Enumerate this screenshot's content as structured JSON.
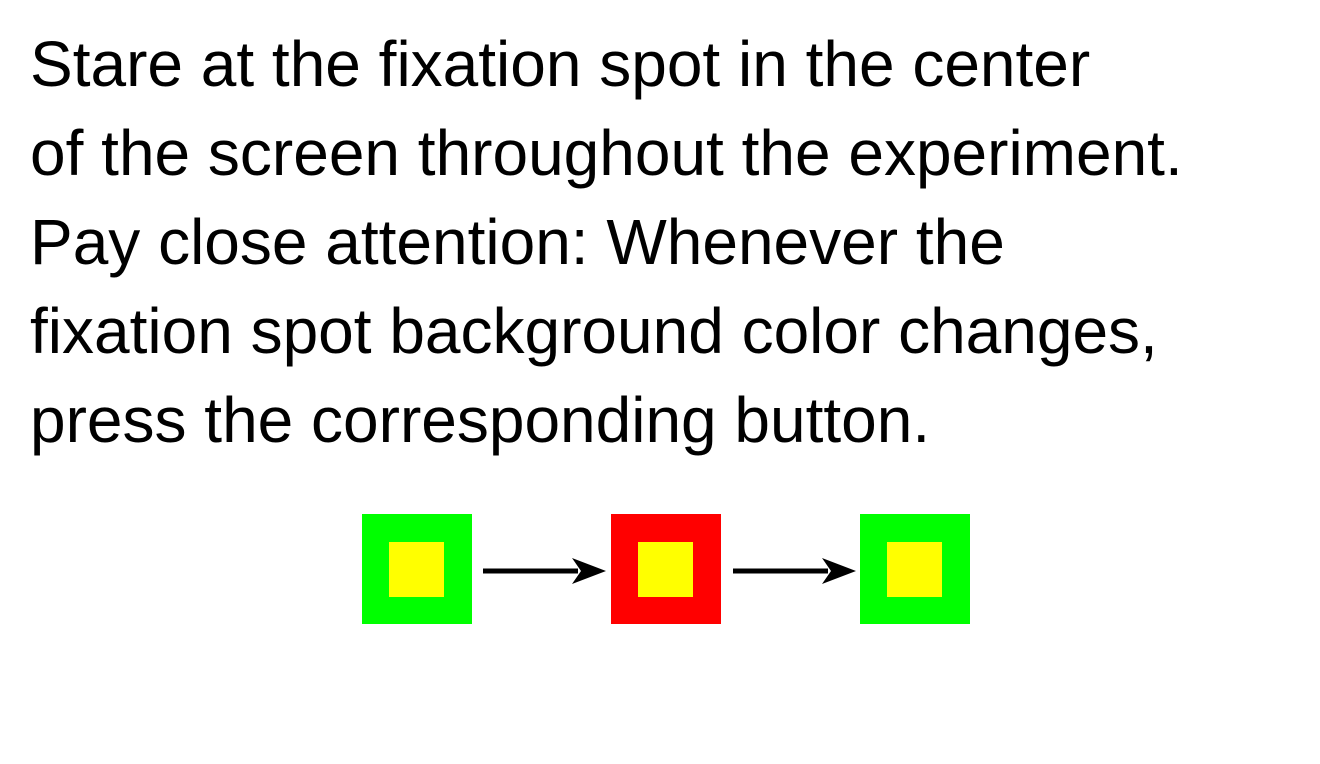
{
  "instructions": {
    "lines": [
      "Stare at the fixation spot in the center",
      "of the screen throughout the experiment.",
      "Pay close attention: Whenever the",
      "fixation spot background color changes,",
      "press the corresponding button."
    ]
  },
  "sequence": {
    "spots": [
      {
        "background": "#00ff00",
        "center": "#ffff00"
      },
      {
        "background": "#ff0000",
        "center": "#ffff00"
      },
      {
        "background": "#00ff00",
        "center": "#ffff00"
      }
    ],
    "arrow_color": "#000000"
  }
}
